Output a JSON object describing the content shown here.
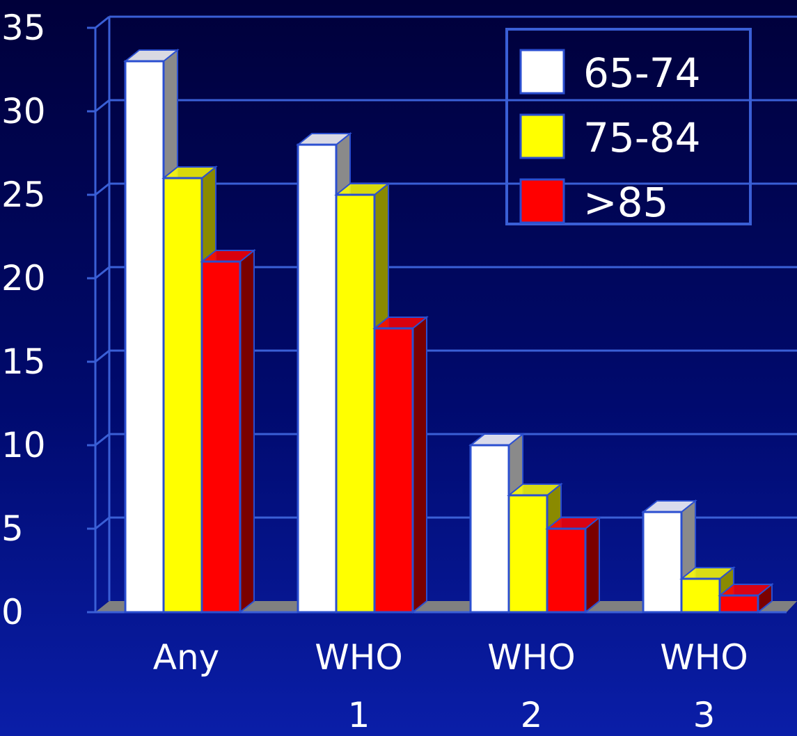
{
  "chart_data": {
    "type": "bar",
    "categories": [
      [
        "Any"
      ],
      [
        "WHO",
        "1"
      ],
      [
        "WHO",
        "2"
      ],
      [
        "WHO",
        "3"
      ]
    ],
    "series": [
      {
        "name": "65-74",
        "values": [
          33,
          28,
          10,
          6
        ],
        "color": "#ffffff",
        "side": "#8a8a8a"
      },
      {
        "name": "75-84",
        "values": [
          26,
          25,
          7,
          2
        ],
        "color": "#ffff00",
        "side": "#8a8a00"
      },
      {
        "name": ">85",
        "values": [
          21,
          17,
          5,
          1
        ],
        "color": "#ff0000",
        "side": "#7a0000"
      }
    ],
    "yticks": [
      "0",
      "5",
      "10",
      "15",
      "20",
      "25",
      "30",
      "35"
    ],
    "ylim": [
      0,
      35
    ],
    "grid": true,
    "legend": "top-right"
  }
}
